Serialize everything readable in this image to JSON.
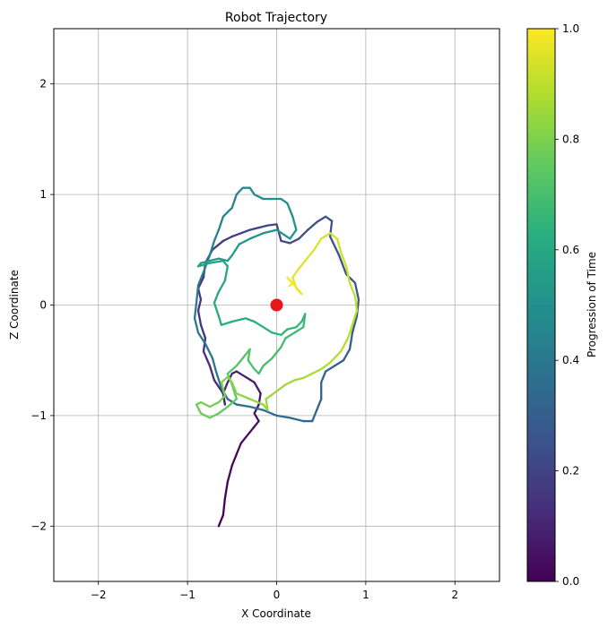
{
  "chart_data": {
    "type": "line",
    "title": "Robot Trajectory",
    "xlabel": "X Coordinate",
    "ylabel": "Z Coordinate",
    "xlim": [
      -2.5,
      2.5
    ],
    "ylim": [
      -2.5,
      2.5
    ],
    "xticks": [
      -2,
      -1,
      0,
      1,
      2
    ],
    "yticks": [
      -2,
      -1,
      0,
      1,
      2
    ],
    "xtick_labels": [
      "−2",
      "−1",
      "0",
      "1",
      "2"
    ],
    "ytick_labels": [
      "−2",
      "−1",
      "0",
      "1",
      "2"
    ],
    "grid": true,
    "colormap": "viridis",
    "colorbar": {
      "label": "Progression of Time",
      "range": [
        0.0,
        1.0
      ],
      "ticks": [
        0.0,
        0.2,
        0.4,
        0.6,
        0.8,
        1.0
      ],
      "tick_labels": [
        "0.0",
        "0.2",
        "0.4",
        "0.6",
        "0.8",
        "1.0"
      ]
    },
    "marker": {
      "label": "origin",
      "x": 0,
      "y": 0,
      "color": "#e8161b"
    },
    "path": [
      [
        -0.65,
        -2.0
      ],
      [
        -0.6,
        -1.9
      ],
      [
        -0.58,
        -1.75
      ],
      [
        -0.55,
        -1.6
      ],
      [
        -0.5,
        -1.45
      ],
      [
        -0.45,
        -1.35
      ],
      [
        -0.4,
        -1.25
      ],
      [
        -0.35,
        -1.2
      ],
      [
        -0.3,
        -1.15
      ],
      [
        -0.25,
        -1.1
      ],
      [
        -0.2,
        -1.05
      ],
      [
        -0.25,
        -0.98
      ],
      [
        -0.2,
        -0.9
      ],
      [
        -0.18,
        -0.8
      ],
      [
        -0.25,
        -0.7
      ],
      [
        -0.35,
        -0.65
      ],
      [
        -0.45,
        -0.6
      ],
      [
        -0.5,
        -0.62
      ],
      [
        -0.55,
        -0.7
      ],
      [
        -0.6,
        -0.8
      ],
      [
        -0.58,
        -0.9
      ],
      [
        -0.6,
        -0.8
      ],
      [
        -0.7,
        -0.68
      ],
      [
        -0.75,
        -0.55
      ],
      [
        -0.82,
        -0.42
      ],
      [
        -0.8,
        -0.3
      ],
      [
        -0.85,
        -0.18
      ],
      [
        -0.88,
        -0.05
      ],
      [
        -0.85,
        0.05
      ],
      [
        -0.88,
        0.15
      ],
      [
        -0.82,
        0.25
      ],
      [
        -0.8,
        0.38
      ],
      [
        -0.72,
        0.5
      ],
      [
        -0.6,
        0.58
      ],
      [
        -0.5,
        0.62
      ],
      [
        -0.4,
        0.65
      ],
      [
        -0.3,
        0.68
      ],
      [
        -0.2,
        0.7
      ],
      [
        -0.1,
        0.72
      ],
      [
        0.0,
        0.73
      ],
      [
        0.05,
        0.58
      ],
      [
        0.15,
        0.56
      ],
      [
        0.25,
        0.6
      ],
      [
        0.35,
        0.68
      ],
      [
        0.45,
        0.75
      ],
      [
        0.55,
        0.8
      ],
      [
        0.62,
        0.76
      ],
      [
        0.6,
        0.62
      ],
      [
        0.7,
        0.45
      ],
      [
        0.78,
        0.28
      ],
      [
        0.88,
        0.2
      ],
      [
        0.92,
        0.05
      ],
      [
        0.9,
        -0.1
      ],
      [
        0.85,
        -0.25
      ],
      [
        0.82,
        -0.4
      ],
      [
        0.75,
        -0.5
      ],
      [
        0.65,
        -0.55
      ],
      [
        0.55,
        -0.6
      ],
      [
        0.5,
        -0.7
      ],
      [
        0.5,
        -0.85
      ],
      [
        0.45,
        -0.95
      ],
      [
        0.4,
        -1.05
      ],
      [
        0.3,
        -1.05
      ],
      [
        0.15,
        -1.02
      ],
      [
        0.0,
        -1.0
      ],
      [
        -0.15,
        -0.95
      ],
      [
        -0.3,
        -0.92
      ],
      [
        -0.45,
        -0.9
      ],
      [
        -0.55,
        -0.85
      ],
      [
        -0.62,
        -0.75
      ],
      [
        -0.68,
        -0.6
      ],
      [
        -0.72,
        -0.48
      ],
      [
        -0.8,
        -0.35
      ],
      [
        -0.88,
        -0.25
      ],
      [
        -0.92,
        -0.12
      ],
      [
        -0.9,
        0.02
      ],
      [
        -0.88,
        0.18
      ],
      [
        -0.82,
        0.3
      ],
      [
        -0.75,
        0.45
      ],
      [
        -0.7,
        0.58
      ],
      [
        -0.65,
        0.68
      ],
      [
        -0.6,
        0.8
      ],
      [
        -0.5,
        0.88
      ],
      [
        -0.45,
        1.0
      ],
      [
        -0.38,
        1.06
      ],
      [
        -0.3,
        1.06
      ],
      [
        -0.25,
        1.0
      ],
      [
        -0.15,
        0.96
      ],
      [
        -0.05,
        0.96
      ],
      [
        0.05,
        0.96
      ],
      [
        0.12,
        0.92
      ],
      [
        0.18,
        0.8
      ],
      [
        0.22,
        0.68
      ],
      [
        0.15,
        0.6
      ],
      [
        0.0,
        0.68
      ],
      [
        -0.15,
        0.65
      ],
      [
        -0.3,
        0.6
      ],
      [
        -0.42,
        0.55
      ],
      [
        -0.5,
        0.45
      ],
      [
        -0.55,
        0.4
      ],
      [
        -0.65,
        0.42
      ],
      [
        -0.75,
        0.4
      ],
      [
        -0.85,
        0.38
      ],
      [
        -0.88,
        0.35
      ],
      [
        -0.75,
        0.38
      ],
      [
        -0.6,
        0.4
      ],
      [
        -0.55,
        0.35
      ],
      [
        -0.58,
        0.22
      ],
      [
        -0.65,
        0.12
      ],
      [
        -0.7,
        0.02
      ],
      [
        -0.65,
        -0.1
      ],
      [
        -0.62,
        -0.18
      ],
      [
        -0.5,
        -0.15
      ],
      [
        -0.35,
        -0.12
      ],
      [
        -0.25,
        -0.15
      ],
      [
        -0.15,
        -0.2
      ],
      [
        -0.05,
        -0.25
      ],
      [
        0.05,
        -0.27
      ],
      [
        0.12,
        -0.22
      ],
      [
        0.22,
        -0.2
      ],
      [
        0.28,
        -0.15
      ],
      [
        0.32,
        -0.08
      ],
      [
        0.3,
        -0.2
      ],
      [
        0.2,
        -0.25
      ],
      [
        0.1,
        -0.3
      ],
      [
        0.05,
        -0.38
      ],
      [
        -0.05,
        -0.48
      ],
      [
        -0.15,
        -0.55
      ],
      [
        -0.2,
        -0.62
      ],
      [
        -0.25,
        -0.58
      ],
      [
        -0.32,
        -0.5
      ],
      [
        -0.3,
        -0.4
      ],
      [
        -0.38,
        -0.48
      ],
      [
        -0.45,
        -0.55
      ],
      [
        -0.55,
        -0.62
      ],
      [
        -0.5,
        -0.72
      ],
      [
        -0.45,
        -0.85
      ],
      [
        -0.55,
        -0.92
      ],
      [
        -0.65,
        -0.98
      ],
      [
        -0.75,
        -1.02
      ],
      [
        -0.85,
        -0.98
      ],
      [
        -0.9,
        -0.9
      ],
      [
        -0.85,
        -0.88
      ],
      [
        -0.75,
        -0.92
      ],
      [
        -0.65,
        -0.88
      ],
      [
        -0.58,
        -0.82
      ],
      [
        -0.62,
        -0.7
      ],
      [
        -0.55,
        -0.65
      ],
      [
        -0.5,
        -0.7
      ],
      [
        -0.45,
        -0.8
      ],
      [
        -0.3,
        -0.85
      ],
      [
        -0.15,
        -0.9
      ],
      [
        -0.1,
        -0.95
      ],
      [
        -0.12,
        -0.85
      ],
      [
        0.0,
        -0.78
      ],
      [
        0.1,
        -0.72
      ],
      [
        0.2,
        -0.68
      ],
      [
        0.3,
        -0.66
      ],
      [
        0.4,
        -0.62
      ],
      [
        0.5,
        -0.58
      ],
      [
        0.6,
        -0.52
      ],
      [
        0.72,
        -0.42
      ],
      [
        0.8,
        -0.3
      ],
      [
        0.85,
        -0.18
      ],
      [
        0.9,
        -0.05
      ],
      [
        0.88,
        0.08
      ],
      [
        0.82,
        0.2
      ],
      [
        0.78,
        0.35
      ],
      [
        0.72,
        0.48
      ],
      [
        0.68,
        0.6
      ],
      [
        0.6,
        0.65
      ],
      [
        0.5,
        0.6
      ],
      [
        0.42,
        0.5
      ],
      [
        0.32,
        0.4
      ],
      [
        0.24,
        0.32
      ],
      [
        0.18,
        0.25
      ],
      [
        0.22,
        0.15
      ],
      [
        0.28,
        0.1
      ],
      [
        0.2,
        0.18
      ],
      [
        0.15,
        0.22
      ],
      [
        0.12,
        0.25
      ],
      [
        0.18,
        0.2
      ],
      [
        0.14,
        0.17
      ]
    ]
  }
}
